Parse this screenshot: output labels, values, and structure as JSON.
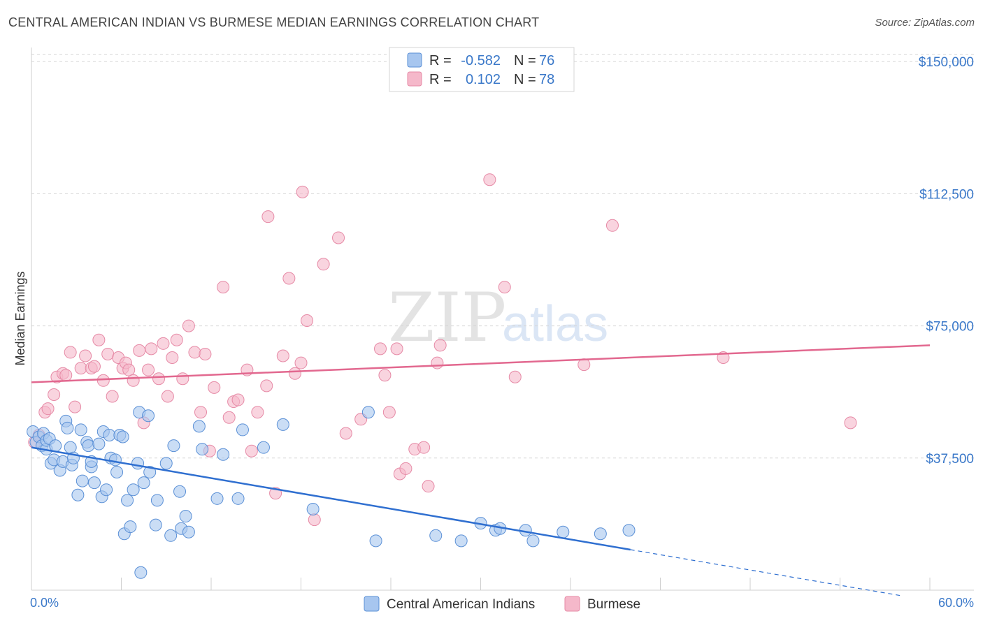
{
  "title": "CENTRAL AMERICAN INDIAN VS BURMESE MEDIAN EARNINGS CORRELATION CHART",
  "source": "Source: ZipAtlas.com",
  "watermark": {
    "zip": "ZIP",
    "atlas": "atlas"
  },
  "legend": {
    "rows": [
      {
        "r_label": "R =",
        "r_value": "-0.582",
        "n_label": "N =",
        "n_value": "76",
        "color": "#a7c6ef"
      },
      {
        "r_label": "R =",
        "r_value": "0.102",
        "n_label": "N =",
        "n_value": "78",
        "color": "#f5b8ca"
      }
    ]
  },
  "bottom_legend": [
    {
      "label": "Central American Indians",
      "color": "#a7c6ef"
    },
    {
      "label": "Burmese",
      "color": "#f5b8ca"
    }
  ],
  "colors": {
    "blue_fill": "#a7c6ef",
    "blue_stroke": "#5b90d6",
    "blue_line": "#2f6fd0",
    "pink_fill": "#f5b8ca",
    "pink_stroke": "#e68aa6",
    "pink_line": "#e2688f",
    "tick_text": "#3a78c9",
    "grid": "#d5d5d5"
  },
  "chart_data": {
    "type": "scatter",
    "title": "CENTRAL AMERICAN INDIAN VS BURMESE MEDIAN EARNINGS CORRELATION CHART",
    "xlabel": "",
    "ylabel": "Median Earnings",
    "xlim": [
      0,
      60
    ],
    "ylim": [
      0,
      154000
    ],
    "x_tick_labels": [
      "0.0%",
      "60.0%"
    ],
    "y_ticks": [
      {
        "value": 37500,
        "label": "$37,500"
      },
      {
        "value": 75000,
        "label": "$75,000"
      },
      {
        "value": 112500,
        "label": "$112,500"
      },
      {
        "value": 150000,
        "label": "$150,000"
      }
    ],
    "grid": "horizontal dashed",
    "series": [
      {
        "name": "Central American Indians",
        "r": -0.582,
        "n": 76,
        "trend": {
          "x0": 0,
          "y0": 40500,
          "x1": 40,
          "y1": 11500,
          "dashed_to_x": 58,
          "dashed_to_y": -1500
        },
        "points": [
          [
            0.1,
            45000
          ],
          [
            0.3,
            42000
          ],
          [
            0.5,
            43500
          ],
          [
            0.7,
            41000
          ],
          [
            0.8,
            44500
          ],
          [
            1.0,
            40000
          ],
          [
            1.0,
            42500
          ],
          [
            1.2,
            43000
          ],
          [
            1.3,
            36000
          ],
          [
            1.5,
            37000
          ],
          [
            1.6,
            41000
          ],
          [
            1.9,
            34000
          ],
          [
            2.1,
            36500
          ],
          [
            2.3,
            48000
          ],
          [
            2.4,
            46000
          ],
          [
            2.6,
            40500
          ],
          [
            2.7,
            35500
          ],
          [
            2.8,
            37500
          ],
          [
            3.1,
            27000
          ],
          [
            3.3,
            45500
          ],
          [
            3.4,
            31000
          ],
          [
            3.7,
            42000
          ],
          [
            3.8,
            41000
          ],
          [
            4.0,
            35000
          ],
          [
            4.0,
            36500
          ],
          [
            4.2,
            30500
          ],
          [
            4.5,
            41500
          ],
          [
            4.7,
            26500
          ],
          [
            4.8,
            45000
          ],
          [
            5.0,
            28500
          ],
          [
            5.2,
            44000
          ],
          [
            5.3,
            37500
          ],
          [
            5.6,
            37000
          ],
          [
            5.9,
            44000
          ],
          [
            5.7,
            33500
          ],
          [
            6.1,
            43500
          ],
          [
            6.2,
            16000
          ],
          [
            6.4,
            25500
          ],
          [
            6.6,
            18000
          ],
          [
            6.8,
            28500
          ],
          [
            7.1,
            36000
          ],
          [
            7.2,
            50500
          ],
          [
            7.3,
            5000
          ],
          [
            7.5,
            30500
          ],
          [
            7.8,
            49500
          ],
          [
            7.9,
            33500
          ],
          [
            8.3,
            18500
          ],
          [
            8.4,
            25500
          ],
          [
            9.0,
            36000
          ],
          [
            9.3,
            15500
          ],
          [
            9.5,
            41000
          ],
          [
            9.9,
            28000
          ],
          [
            10.0,
            17500
          ],
          [
            10.3,
            21000
          ],
          [
            10.5,
            16500
          ],
          [
            11.2,
            46500
          ],
          [
            11.4,
            40000
          ],
          [
            12.4,
            26000
          ],
          [
            12.8,
            38500
          ],
          [
            13.8,
            26000
          ],
          [
            14.1,
            45500
          ],
          [
            15.5,
            40500
          ],
          [
            16.8,
            47000
          ],
          [
            18.8,
            23000
          ],
          [
            22.5,
            50500
          ],
          [
            23.0,
            14000
          ],
          [
            27.0,
            15500
          ],
          [
            28.7,
            14000
          ],
          [
            30.0,
            19000
          ],
          [
            31.0,
            17000
          ],
          [
            31.3,
            17500
          ],
          [
            33.0,
            17000
          ],
          [
            33.5,
            14000
          ],
          [
            35.5,
            16500
          ],
          [
            38.0,
            16000
          ],
          [
            39.9,
            17000
          ]
        ]
      },
      {
        "name": "Burmese",
        "r": 0.102,
        "n": 78,
        "trend": {
          "x0": 0,
          "y0": 59000,
          "x1": 60,
          "y1": 69500
        },
        "points": [
          [
            0.2,
            42000
          ],
          [
            0.5,
            44000
          ],
          [
            0.9,
            50500
          ],
          [
            1.1,
            51500
          ],
          [
            1.5,
            55500
          ],
          [
            1.7,
            60500
          ],
          [
            2.1,
            61500
          ],
          [
            2.3,
            61000
          ],
          [
            2.6,
            67500
          ],
          [
            2.9,
            52000
          ],
          [
            3.3,
            63000
          ],
          [
            3.6,
            66500
          ],
          [
            4.0,
            63000
          ],
          [
            4.2,
            63500
          ],
          [
            4.5,
            71000
          ],
          [
            4.8,
            59500
          ],
          [
            5.1,
            67000
          ],
          [
            5.4,
            55000
          ],
          [
            5.8,
            66000
          ],
          [
            6.1,
            63000
          ],
          [
            6.3,
            64500
          ],
          [
            6.5,
            62500
          ],
          [
            6.8,
            59500
          ],
          [
            7.2,
            68000
          ],
          [
            7.5,
            47500
          ],
          [
            7.8,
            62500
          ],
          [
            8.0,
            68500
          ],
          [
            8.5,
            60000
          ],
          [
            8.8,
            70000
          ],
          [
            9.1,
            55000
          ],
          [
            9.4,
            66000
          ],
          [
            9.7,
            71000
          ],
          [
            10.1,
            60000
          ],
          [
            10.5,
            75000
          ],
          [
            10.9,
            67500
          ],
          [
            11.3,
            50500
          ],
          [
            11.6,
            67000
          ],
          [
            11.9,
            39500
          ],
          [
            12.2,
            57500
          ],
          [
            12.8,
            86000
          ],
          [
            13.2,
            49000
          ],
          [
            13.5,
            53500
          ],
          [
            13.8,
            54000
          ],
          [
            14.4,
            62500
          ],
          [
            14.7,
            39500
          ],
          [
            15.1,
            50500
          ],
          [
            15.7,
            58000
          ],
          [
            15.8,
            106000
          ],
          [
            16.3,
            27500
          ],
          [
            16.8,
            66500
          ],
          [
            17.2,
            88500
          ],
          [
            17.6,
            61500
          ],
          [
            18.0,
            64500
          ],
          [
            18.1,
            113000
          ],
          [
            18.4,
            76500
          ],
          [
            18.9,
            20000
          ],
          [
            19.5,
            92500
          ],
          [
            20.5,
            100000
          ],
          [
            21.0,
            44500
          ],
          [
            22.0,
            48500
          ],
          [
            23.3,
            68500
          ],
          [
            23.6,
            61000
          ],
          [
            23.9,
            50500
          ],
          [
            24.4,
            68500
          ],
          [
            24.6,
            33000
          ],
          [
            25.0,
            34500
          ],
          [
            25.6,
            40000
          ],
          [
            26.2,
            40500
          ],
          [
            26.5,
            29500
          ],
          [
            27.1,
            64500
          ],
          [
            27.3,
            69500
          ],
          [
            30.6,
            116500
          ],
          [
            31.6,
            86000
          ],
          [
            32.3,
            60500
          ],
          [
            36.9,
            64000
          ],
          [
            38.8,
            103500
          ],
          [
            46.2,
            66000
          ],
          [
            54.7,
            47500
          ]
        ]
      }
    ]
  }
}
